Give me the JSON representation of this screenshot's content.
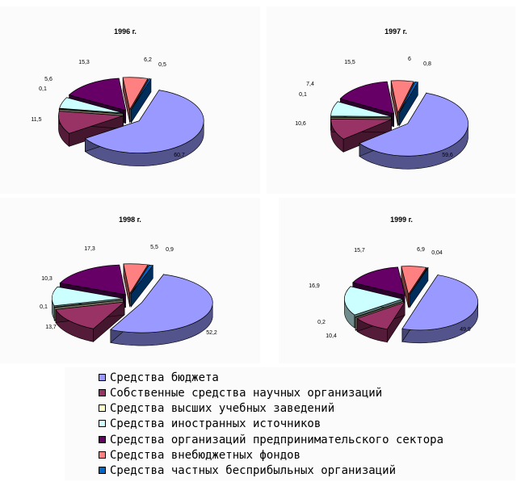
{
  "chart_data": [
    {
      "type": "pie",
      "title": "1996 г.",
      "labels": [
        "60,7",
        "11,5",
        "0,1",
        "5,6",
        "15,3",
        "6,2",
        "0,5"
      ],
      "values": [
        60.7,
        11.5,
        0.1,
        5.6,
        15.3,
        6.2,
        0.5
      ]
    },
    {
      "type": "pie",
      "title": "1997 г.",
      "labels": [
        "59,6",
        "10,6",
        "0,1",
        "7,4",
        "15,5",
        "6",
        "0,8"
      ],
      "values": [
        59.6,
        10.6,
        0.1,
        7.4,
        15.5,
        6.0,
        0.8
      ]
    },
    {
      "type": "pie",
      "title": "1998 г.",
      "labels": [
        "52,2",
        "13,7",
        "0,1",
        "10,3",
        "17,3",
        "5,5",
        "0,9"
      ],
      "values": [
        52.2,
        13.7,
        0.1,
        10.3,
        17.3,
        5.5,
        0.9
      ]
    },
    {
      "type": "pie",
      "title": "1999 г.",
      "labels": [
        "49,9",
        "10,4",
        "0,2",
        "16,9",
        "15,7",
        "6,9",
        "0,04"
      ],
      "values": [
        49.9,
        10.4,
        0.2,
        16.9,
        15.7,
        6.9,
        0.04
      ]
    }
  ],
  "legend": [
    {
      "label": "Средства бюджета",
      "color": "#9999ff"
    },
    {
      "label": "Собственные средства научных организаций",
      "color": "#993366"
    },
    {
      "label": "Средства высших учебных заведений",
      "color": "#ffffcc"
    },
    {
      "label": "Средства иностранных источников",
      "color": "#ccffff"
    },
    {
      "label": "Средства организаций предпринимательского сектора",
      "color": "#660066"
    },
    {
      "label": "Средства внебюджетных фондов",
      "color": "#ff8080"
    },
    {
      "label": "Средства частных бесприбыльных организаций",
      "color": "#0066cc"
    }
  ]
}
